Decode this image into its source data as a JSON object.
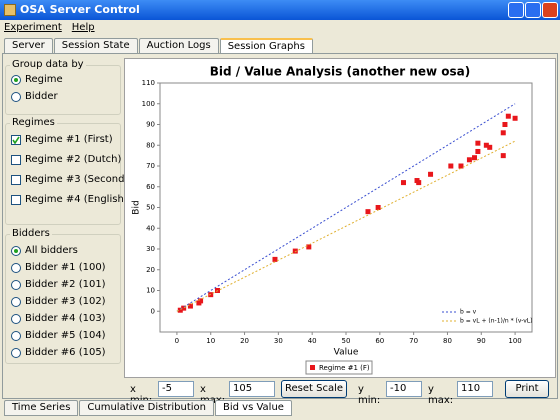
{
  "window": {
    "title": "OSA Server Control"
  },
  "menu": [
    "Experiment",
    "Help"
  ],
  "tabs": {
    "items": [
      "Server",
      "Session State",
      "Auction Logs",
      "Session Graphs"
    ],
    "selected": 3
  },
  "sidebar": {
    "group_by": {
      "title": "Group data by",
      "options": [
        "Regime",
        "Bidder"
      ],
      "selected": 0
    },
    "regimes": {
      "title": "Regimes",
      "items": [
        {
          "label": "Regime #1 (First)",
          "checked": true
        },
        {
          "label": "Regime #2 (Dutch)",
          "checked": false
        },
        {
          "label": "Regime #3 (Second)",
          "checked": false
        },
        {
          "label": "Regime #4 (English)",
          "checked": false
        }
      ]
    },
    "bidders": {
      "title": "Bidders",
      "options": [
        "All bidders",
        "Bidder #1 (100)",
        "Bidder #2 (101)",
        "Bidder #3 (102)",
        "Bidder #4 (103)",
        "Bidder #5 (104)",
        "Bidder #6 (105)"
      ],
      "selected": 0
    }
  },
  "chart_data": {
    "type": "scatter",
    "title": "Bid / Value Analysis (another new osa)",
    "x_label": "Value",
    "y_label": "Bid",
    "xlim": [
      -5,
      105
    ],
    "ylim": [
      -10,
      110
    ],
    "xticks": [
      0,
      10,
      20,
      30,
      40,
      50,
      60,
      70,
      80,
      90,
      100
    ],
    "yticks": [
      0,
      10,
      20,
      30,
      40,
      50,
      60,
      70,
      80,
      90,
      100,
      110
    ],
    "grid": false,
    "series": [
      {
        "name": "Regime #1 (F)",
        "color": "#e8161b",
        "x": [
          1,
          2,
          4,
          6.5,
          7,
          10,
          12,
          29,
          35,
          39,
          56.5,
          59.5,
          67,
          71,
          71.5,
          75,
          81,
          84,
          86.5,
          88,
          89,
          89,
          91.5,
          92.5,
          96.5,
          96.5,
          97,
          98,
          100
        ],
        "values": [
          0.5,
          1.5,
          2.5,
          4,
          5,
          8,
          10,
          25,
          29,
          31,
          48,
          50,
          62,
          63,
          62,
          66,
          70,
          70,
          73,
          74,
          77,
          81,
          80,
          79,
          75,
          86,
          90,
          94,
          93
        ]
      },
      {
        "name": "b = v",
        "color": "#3a4fd0",
        "line": "dashed",
        "x": [
          0,
          100
        ],
        "values": [
          0,
          100
        ]
      },
      {
        "name": "b = vL + (n-1)/n * (v-vL)",
        "color": "#e0b030",
        "line": "dashed",
        "x": [
          0,
          100
        ],
        "values": [
          0,
          82
        ]
      }
    ]
  },
  "controls": {
    "x_min_label": "x min:",
    "x_max_label": "x max:",
    "reset": "Reset Scale",
    "y_min_label": "y min:",
    "y_max_label": "y max:",
    "print": "Print"
  },
  "bottom_tabs": {
    "items": [
      "Time Series",
      "Cumulative Distribution",
      "Bid vs Value"
    ],
    "selected": 2
  }
}
